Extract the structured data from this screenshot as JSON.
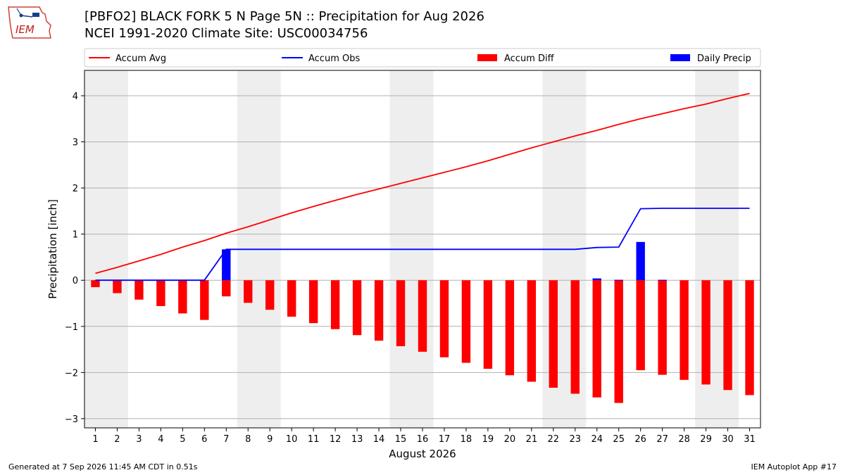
{
  "header": {
    "title": "[PBFO2] BLACK FORK 5 N Page 5N :: Precipitation for Aug 2026",
    "subtitle": "NCEI 1991-2020 Climate Site: USC00034756",
    "logo_text": "IEM"
  },
  "footer": {
    "generated": "Generated at 7 Sep 2026 11:45 AM CDT in 0.51s",
    "app": "IEM Autoplot App #17"
  },
  "colors": {
    "accum_avg": "#ff0000",
    "accum_obs": "#0000ff",
    "accum_diff": "#ff0000",
    "daily_precip": "#0000ff",
    "weekend_shade": "#eeeeee",
    "grid": "#b0b0b0"
  },
  "chart_data": {
    "type": "bar",
    "title": "[PBFO2] BLACK FORK 5 N Page 5N :: Precipitation for Aug 2026",
    "xlabel": "August 2026",
    "ylabel": "Precipitation [inch]",
    "x": [
      1,
      2,
      3,
      4,
      5,
      6,
      7,
      8,
      9,
      10,
      11,
      12,
      13,
      14,
      15,
      16,
      17,
      18,
      19,
      20,
      21,
      22,
      23,
      24,
      25,
      26,
      27,
      28,
      29,
      30,
      31
    ],
    "xlim": [
      0.5,
      31.5
    ],
    "ylim": [
      -3.2,
      4.55
    ],
    "yticks": [
      -3,
      -2,
      -1,
      0,
      1,
      2,
      3,
      4
    ],
    "ytick_labels": [
      "−3",
      "−2",
      "−1",
      "0",
      "1",
      "2",
      "3",
      "4"
    ],
    "grid": true,
    "legend_position": "top",
    "shaded_day_ranges": [
      [
        1,
        2
      ],
      [
        8,
        9
      ],
      [
        15,
        16
      ],
      [
        22,
        23
      ],
      [
        29,
        30
      ]
    ],
    "series": [
      {
        "name": "Accum Avg",
        "kind": "line",
        "values": [
          0.15,
          0.28,
          0.42,
          0.56,
          0.72,
          0.86,
          1.02,
          1.16,
          1.31,
          1.46,
          1.6,
          1.73,
          1.86,
          1.98,
          2.1,
          2.22,
          2.34,
          2.46,
          2.59,
          2.73,
          2.87,
          3.0,
          3.13,
          3.25,
          3.38,
          3.5,
          3.61,
          3.72,
          3.82,
          3.94,
          4.05
        ]
      },
      {
        "name": "Accum Obs",
        "kind": "line",
        "values": [
          0,
          0,
          0,
          0,
          0,
          0,
          0.67,
          0.67,
          0.67,
          0.67,
          0.67,
          0.67,
          0.67,
          0.67,
          0.67,
          0.67,
          0.67,
          0.67,
          0.67,
          0.67,
          0.67,
          0.67,
          0.67,
          0.71,
          0.72,
          1.55,
          1.56,
          1.56,
          1.56,
          1.56,
          1.56
        ]
      },
      {
        "name": "Accum Diff",
        "kind": "bar",
        "values": [
          -0.15,
          -0.28,
          -0.42,
          -0.56,
          -0.72,
          -0.86,
          -0.35,
          -0.49,
          -0.64,
          -0.79,
          -0.93,
          -1.06,
          -1.19,
          -1.31,
          -1.43,
          -1.55,
          -1.67,
          -1.79,
          -1.92,
          -2.06,
          -2.2,
          -2.33,
          -2.46,
          -2.54,
          -2.66,
          -1.95,
          -2.05,
          -2.16,
          -2.26,
          -2.38,
          -2.49
        ]
      },
      {
        "name": "Daily Precip",
        "kind": "bar",
        "values": [
          0,
          0,
          0,
          0,
          0,
          0,
          0.67,
          0,
          0,
          0,
          0,
          0,
          0,
          0,
          0,
          0,
          0,
          0,
          0,
          0,
          0,
          0,
          0,
          0.04,
          0.01,
          0.83,
          0.01,
          0,
          0,
          0,
          0
        ]
      }
    ]
  }
}
